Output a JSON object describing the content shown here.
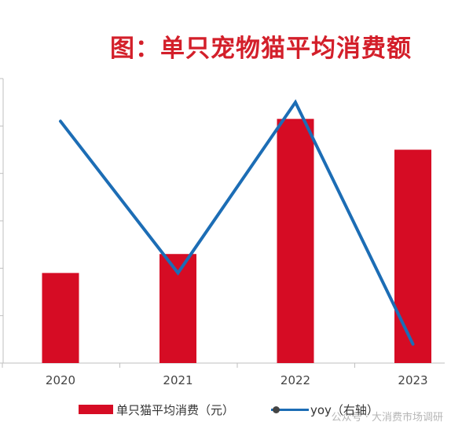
{
  "title": "图：单只宠物猫平均消费额",
  "chart_data": {
    "type": "bar",
    "categories": [
      "2020",
      "2021",
      "2022",
      "2023"
    ],
    "series": [
      {
        "name": "单只猫平均消费（元）",
        "type": "bar",
        "axis": "left",
        "color": "#D60C24",
        "values": [
          1.9,
          2.3,
          5.15,
          4.5
        ]
      },
      {
        "name": "yoy（右轴）",
        "type": "line",
        "axis": "right",
        "color": "#1C6DB5",
        "values": [
          5.1,
          1.9,
          5.5,
          0.4
        ]
      }
    ],
    "ylim": [
      0,
      6
    ],
    "y2lim": [
      0,
      6
    ],
    "grid": false,
    "legend_position": "bottom"
  },
  "legend": {
    "bar_label": "单只猫平均消费（元）",
    "line_label": "yoy（右轴）"
  },
  "watermark": "公众号 · 大消费市场调研"
}
